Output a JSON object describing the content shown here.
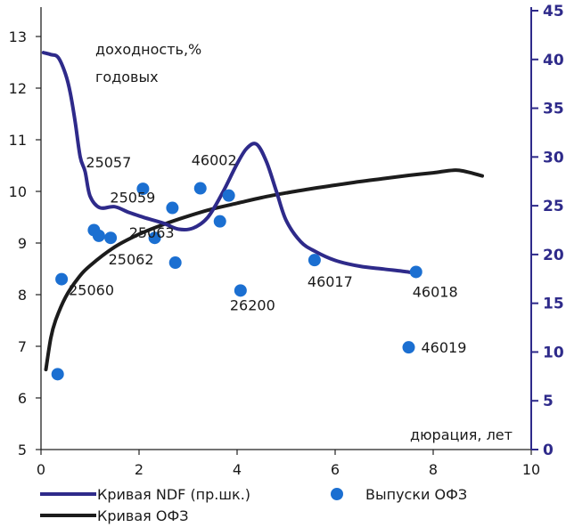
{
  "chart_data": {
    "type": "scatter",
    "title": "",
    "ylabel_annotation_line1": "доходность,%",
    "ylabel_annotation_line2": "годовых",
    "xlabel": "дюрация, лет",
    "xlim": [
      0,
      10
    ],
    "ylim_left": [
      5,
      13.5
    ],
    "ylim_right": [
      0,
      45
    ],
    "x_ticks": [
      "0",
      "2",
      "4",
      "6",
      "8",
      "10"
    ],
    "y_ticks_left": [
      "5",
      "6",
      "7",
      "8",
      "9",
      "10",
      "11",
      "12",
      "13"
    ],
    "y_ticks_right": [
      "0",
      "5",
      "10",
      "15",
      "20",
      "25",
      "30",
      "35",
      "40",
      "45"
    ],
    "grid": false,
    "legend_position": "bottom",
    "colors": {
      "ndf": "#2e2a8a",
      "ofz_curve": "#1c1c1c",
      "ofz_points": "#1b6fd1",
      "right_axis": "#2e2a8a"
    },
    "series": [
      {
        "name": "Кривая NDF (пр.шк.)",
        "kind": "line",
        "axis": "right",
        "points": [
          [
            0.05,
            40.7
          ],
          [
            0.2,
            40.5
          ],
          [
            0.35,
            40.2
          ],
          [
            0.5,
            38.5
          ],
          [
            0.6,
            36.5
          ],
          [
            0.7,
            33.5
          ],
          [
            0.8,
            30.0
          ],
          [
            0.9,
            28.5
          ],
          [
            1.0,
            26.0
          ],
          [
            1.2,
            24.8
          ],
          [
            1.5,
            24.9
          ],
          [
            1.8,
            24.3
          ],
          [
            2.1,
            23.8
          ],
          [
            2.5,
            23.2
          ],
          [
            2.8,
            22.6
          ],
          [
            3.1,
            22.7
          ],
          [
            3.4,
            23.8
          ],
          [
            3.7,
            26.3
          ],
          [
            4.0,
            29.3
          ],
          [
            4.2,
            30.9
          ],
          [
            4.4,
            31.3
          ],
          [
            4.6,
            29.5
          ],
          [
            4.8,
            26.5
          ],
          [
            5.0,
            23.5
          ],
          [
            5.3,
            21.3
          ],
          [
            5.6,
            20.3
          ],
          [
            6.0,
            19.4
          ],
          [
            6.5,
            18.8
          ],
          [
            7.0,
            18.5
          ],
          [
            7.5,
            18.2
          ],
          [
            7.7,
            18.0
          ]
        ]
      },
      {
        "name": "Кривая ОФЗ",
        "kind": "line",
        "axis": "left",
        "points": [
          [
            0.1,
            6.55
          ],
          [
            0.2,
            7.16
          ],
          [
            0.3,
            7.51
          ],
          [
            0.5,
            7.95
          ],
          [
            0.75,
            8.31
          ],
          [
            1.0,
            8.56
          ],
          [
            1.5,
            8.92
          ],
          [
            2.0,
            9.17
          ],
          [
            2.5,
            9.36
          ],
          [
            3.0,
            9.52
          ],
          [
            3.5,
            9.66
          ],
          [
            4.0,
            9.77
          ],
          [
            4.5,
            9.88
          ],
          [
            5.0,
            9.97
          ],
          [
            5.5,
            10.05
          ],
          [
            6.0,
            10.12
          ],
          [
            6.5,
            10.19
          ],
          [
            7.0,
            10.25
          ],
          [
            7.5,
            10.31
          ],
          [
            8.0,
            10.36
          ],
          [
            8.5,
            10.41
          ],
          [
            9.0,
            10.3
          ]
        ]
      },
      {
        "name": "Выпуски ОФЗ",
        "kind": "scatter",
        "axis": "left",
        "points": [
          {
            "x": 0.34,
            "y": 6.46,
            "label": ""
          },
          {
            "x": 0.42,
            "y": 8.3,
            "label": "25060"
          },
          {
            "x": 1.08,
            "y": 9.25,
            "label": ""
          },
          {
            "x": 1.18,
            "y": 9.14,
            "label": ""
          },
          {
            "x": 1.42,
            "y": 9.1,
            "label": ""
          },
          {
            "x": 2.08,
            "y": 10.05,
            "label": "25057"
          },
          {
            "x": 2.32,
            "y": 9.1,
            "label": "25062"
          },
          {
            "x": 2.68,
            "y": 9.68,
            "label": "25059"
          },
          {
            "x": 2.74,
            "y": 8.62,
            "label": "25063"
          },
          {
            "x": 3.25,
            "y": 10.06,
            "label": "46002"
          },
          {
            "x": 3.65,
            "y": 9.42,
            "label": ""
          },
          {
            "x": 3.83,
            "y": 9.92,
            "label": ""
          },
          {
            "x": 4.07,
            "y": 8.08,
            "label": "26200"
          },
          {
            "x": 5.58,
            "y": 8.67,
            "label": "46017"
          },
          {
            "x": 7.5,
            "y": 6.98,
            "label": "46019"
          },
          {
            "x": 7.65,
            "y": 8.44,
            "label": "46018"
          }
        ]
      }
    ],
    "legend": [
      {
        "label": "Кривая NDF (пр.шк.)",
        "kind": "line",
        "series": 0
      },
      {
        "label": "Выпуски ОФЗ",
        "kind": "marker",
        "series": 2
      },
      {
        "label": "Кривая ОФЗ",
        "kind": "line",
        "series": 1
      }
    ]
  }
}
